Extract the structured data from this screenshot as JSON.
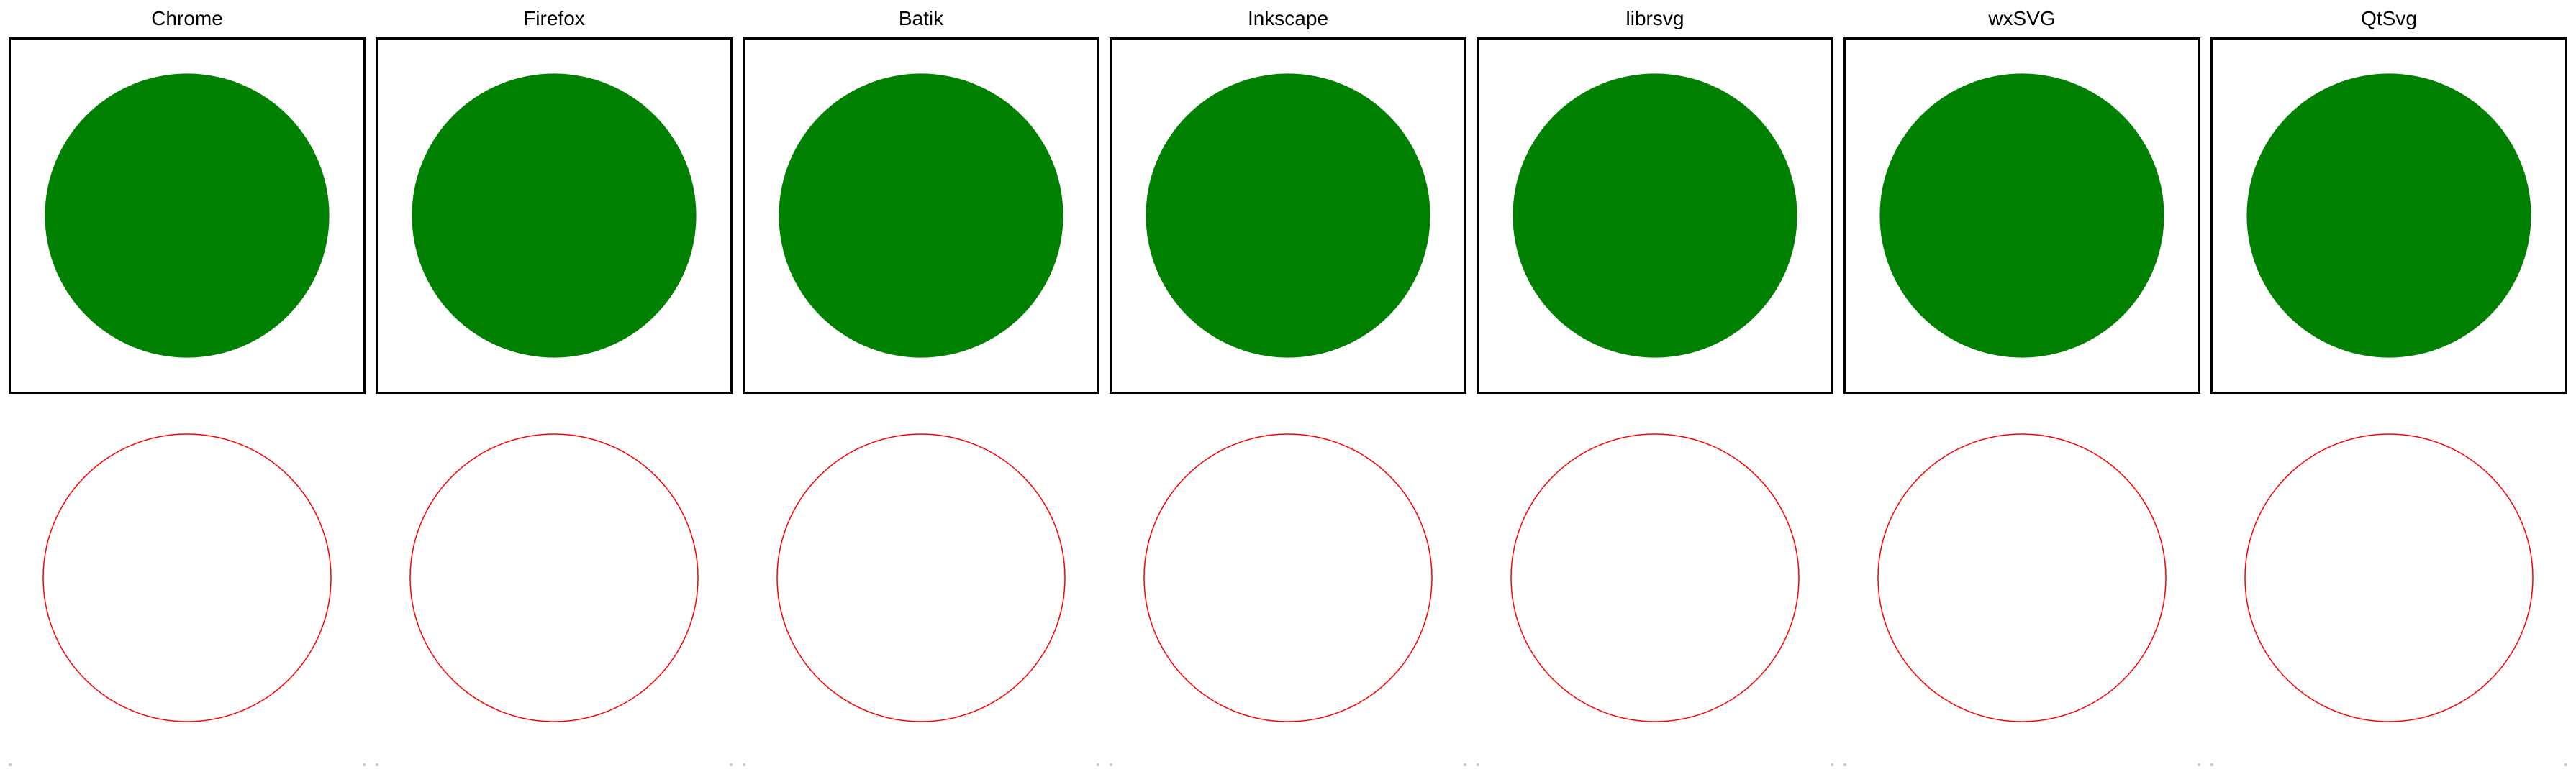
{
  "colors": {
    "fill": "#008000",
    "reference_stroke": "#ff0000",
    "frame": "#000000",
    "background": "#ffffff"
  },
  "renderers": [
    {
      "name": "Chrome"
    },
    {
      "name": "Firefox"
    },
    {
      "name": "Batik"
    },
    {
      "name": "Inkscape"
    },
    {
      "name": "librsvg"
    },
    {
      "name": "wxSVG"
    },
    {
      "name": "QtSvg"
    }
  ]
}
